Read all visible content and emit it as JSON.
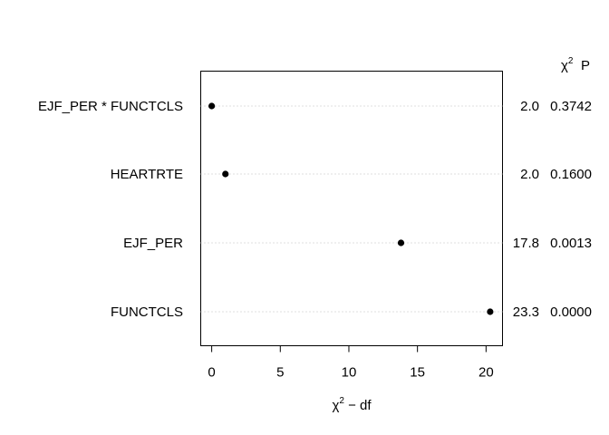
{
  "chart_data": {
    "type": "dot",
    "xlabel_main": "χ",
    "xlabel_sup": "2",
    "xlabel_tail": " − df",
    "header_chi": "χ",
    "header_sup": "2",
    "header_p": "P",
    "xlim": [
      -0.8,
      21.2
    ],
    "xticks": [
      0,
      5,
      10,
      15,
      20
    ],
    "rows": [
      {
        "label": "EJF_PER * FUNCTCLS",
        "value": 0.0,
        "chi2": "2.0",
        "p": "0.3742"
      },
      {
        "label": "HEARTRTE",
        "value": 1.0,
        "chi2": "2.0",
        "p": "0.1600"
      },
      {
        "label": "EJF_PER",
        "value": 13.8,
        "chi2": "17.8",
        "p": "0.0013"
      },
      {
        "label": "FUNCTCLS",
        "value": 20.3,
        "chi2": "23.3",
        "p": "0.0000"
      }
    ]
  }
}
